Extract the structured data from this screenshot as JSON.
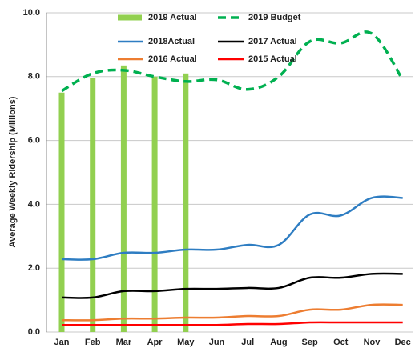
{
  "chart_data": {
    "type": "bar",
    "y_label": "Average Weekly Ridership (Millions)",
    "categories": [
      "Jan",
      "Feb",
      "Mar",
      "Apr",
      "May",
      "Jun",
      "Jul",
      "Aug",
      "Sep",
      "Oct",
      "Nov",
      "Dec"
    ],
    "ylim": [
      0,
      10
    ],
    "yticks": [
      {
        "value": 0,
        "label": "0.0"
      },
      {
        "value": 2,
        "label": "2.0"
      },
      {
        "value": 4,
        "label": "4.0"
      },
      {
        "value": 6,
        "label": "6.0"
      },
      {
        "value": 8,
        "label": "8.0"
      },
      {
        "value": 10,
        "label": "10.0"
      }
    ],
    "grid": true,
    "series": [
      {
        "name": "2019 Actual",
        "type": "bar",
        "color": "#92d050",
        "values": [
          7.5,
          7.95,
          8.35,
          8.0,
          8.1,
          null,
          null,
          null,
          null,
          null,
          null,
          null
        ]
      },
      {
        "name": "2019 Budget",
        "type": "line",
        "dashed": true,
        "color": "#00b050",
        "values": [
          7.55,
          8.1,
          8.2,
          8.0,
          7.85,
          7.9,
          7.6,
          8.0,
          9.1,
          9.05,
          9.35,
          7.9
        ]
      },
      {
        "name": "2018Actual",
        "type": "line",
        "color": "#2e7dc2",
        "values": [
          2.28,
          2.28,
          2.48,
          2.48,
          2.58,
          2.58,
          2.73,
          2.73,
          3.68,
          3.65,
          4.2,
          4.2
        ]
      },
      {
        "name": "2017 Actual",
        "type": "line",
        "color": "#000000",
        "values": [
          1.08,
          1.08,
          1.28,
          1.28,
          1.35,
          1.35,
          1.38,
          1.38,
          1.7,
          1.7,
          1.82,
          1.82
        ]
      },
      {
        "name": "2016 Actual",
        "type": "line",
        "color": "#ed7d31",
        "values": [
          0.37,
          0.37,
          0.42,
          0.42,
          0.45,
          0.45,
          0.5,
          0.5,
          0.7,
          0.7,
          0.85,
          0.85
        ]
      },
      {
        "name": "2015 Actual",
        "type": "line",
        "color": "#ff0000",
        "values": [
          0.22,
          0.22,
          0.22,
          0.22,
          0.22,
          0.22,
          0.25,
          0.25,
          0.3,
          0.3,
          0.3,
          0.3
        ]
      }
    ]
  }
}
